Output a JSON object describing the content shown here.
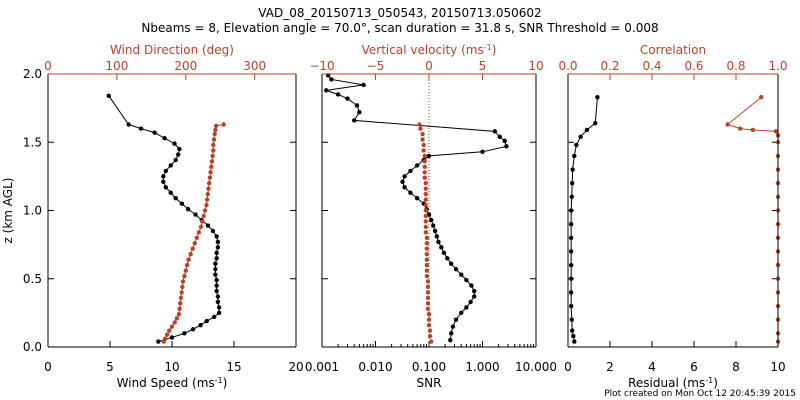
{
  "figure": {
    "title_line1": "VAD_08_20150713_050543, 20150713.050602",
    "title_line2": "Nbeams = 8, Elevation angle = 70.0°, scan duration = 31.8 s, SNR Threshold = 0.008",
    "footer": "Plot created on Mon Oct 12 20:45:39 2015",
    "colors": {
      "primary": "#000000",
      "secondary": "#b5442b"
    }
  },
  "chart_data": [
    {
      "type": "scatter",
      "panel": "wind",
      "ylabel": "z (km AGL)",
      "ylim": [
        0,
        2
      ],
      "yticks": [
        "0.0",
        "0.5",
        "1.0",
        "1.5",
        "2.0"
      ],
      "bottom_axis": {
        "label_main": "Wind Speed (ms",
        "label_sup": "-1",
        "label_end": ")",
        "range": [
          0,
          20
        ],
        "ticks": [
          "0",
          "5",
          "10",
          "15",
          "20"
        ]
      },
      "top_axis": {
        "label": "Wind Direction (deg)",
        "range": [
          0,
          360
        ],
        "ticks": [
          "0",
          "100",
          "200",
          "300"
        ]
      },
      "series": [
        {
          "axis": "bottom",
          "color": "#000000",
          "connected": true,
          "points": [
            [
              8.9,
              0.04
            ],
            [
              10.0,
              0.07
            ],
            [
              11.0,
              0.1
            ],
            [
              11.7,
              0.13
            ],
            [
              12.3,
              0.16
            ],
            [
              12.8,
              0.19
            ],
            [
              13.4,
              0.22
            ],
            [
              13.8,
              0.25
            ],
            [
              13.8,
              0.29
            ],
            [
              13.7,
              0.33
            ],
            [
              13.7,
              0.37
            ],
            [
              13.6,
              0.41
            ],
            [
              13.6,
              0.45
            ],
            [
              13.6,
              0.49
            ],
            [
              13.5,
              0.53
            ],
            [
              13.5,
              0.57
            ],
            [
              13.5,
              0.61
            ],
            [
              13.6,
              0.65
            ],
            [
              13.6,
              0.69
            ],
            [
              13.7,
              0.73
            ],
            [
              13.7,
              0.77
            ],
            [
              13.6,
              0.81
            ],
            [
              13.3,
              0.85
            ],
            [
              12.9,
              0.89
            ],
            [
              12.4,
              0.93
            ],
            [
              11.9,
              0.97
            ],
            [
              11.3,
              1.01
            ],
            [
              10.8,
              1.05
            ],
            [
              10.3,
              1.09
            ],
            [
              9.9,
              1.13
            ],
            [
              9.5,
              1.17
            ],
            [
              9.3,
              1.21
            ],
            [
              9.3,
              1.25
            ],
            [
              9.5,
              1.29
            ],
            [
              9.9,
              1.33
            ],
            [
              10.3,
              1.37
            ],
            [
              10.5,
              1.41
            ],
            [
              10.6,
              1.45
            ],
            [
              10.2,
              1.49
            ],
            [
              9.4,
              1.53
            ],
            [
              8.6,
              1.57
            ],
            [
              7.5,
              1.6
            ],
            [
              6.5,
              1.63
            ],
            [
              4.9,
              1.84
            ]
          ]
        },
        {
          "axis": "top",
          "color": "#b5442b",
          "connected": true,
          "points": [
            [
              168,
              0.04
            ],
            [
              170,
              0.06
            ],
            [
              173,
              0.09
            ],
            [
              176,
              0.12
            ],
            [
              180,
              0.15
            ],
            [
              184,
              0.18
            ],
            [
              187,
              0.21
            ],
            [
              190,
              0.24
            ],
            [
              191,
              0.28
            ],
            [
              192,
              0.32
            ],
            [
              193,
              0.36
            ],
            [
              194,
              0.4
            ],
            [
              195,
              0.44
            ],
            [
              196,
              0.48
            ],
            [
              198,
              0.52
            ],
            [
              200,
              0.56
            ],
            [
              202,
              0.6
            ],
            [
              204,
              0.64
            ],
            [
              207,
              0.68
            ],
            [
              210,
              0.72
            ],
            [
              213,
              0.76
            ],
            [
              216,
              0.8
            ],
            [
              219,
              0.84
            ],
            [
              222,
              0.88
            ],
            [
              224,
              0.92
            ],
            [
              226,
              0.96
            ],
            [
              228,
              1.0
            ],
            [
              230,
              1.04
            ],
            [
              231,
              1.08
            ],
            [
              232,
              1.12
            ],
            [
              233,
              1.16
            ],
            [
              234,
              1.2
            ],
            [
              235,
              1.24
            ],
            [
              236,
              1.28
            ],
            [
              237,
              1.32
            ],
            [
              238,
              1.36
            ],
            [
              239,
              1.4
            ],
            [
              240,
              1.44
            ],
            [
              240,
              1.48
            ],
            [
              241,
              1.52
            ],
            [
              242,
              1.56
            ],
            [
              243,
              1.59
            ],
            [
              244,
              1.62
            ],
            [
              255,
              1.63
            ]
          ]
        }
      ]
    },
    {
      "type": "scatter",
      "panel": "vertical",
      "ylim": [
        0,
        2
      ],
      "bottom_axis": {
        "label": "SNR",
        "scale": "log",
        "range": [
          0.001,
          10
        ],
        "ticks": [
          "0.001",
          "0.010",
          "0.100",
          "1.000",
          "10.000"
        ]
      },
      "top_axis": {
        "label_main": "Vertical velocity (ms",
        "label_sup": "-1",
        "label_end": ")",
        "range": [
          -10,
          10
        ],
        "ticks": [
          "−10",
          "−5",
          "0",
          "5",
          "10"
        ],
        "zero_line": 0
      },
      "series": [
        {
          "axis": "bottom",
          "color": "#000000",
          "connected": true,
          "points": [
            [
              0.25,
              0.05
            ],
            [
              0.26,
              0.1
            ],
            [
              0.28,
              0.15
            ],
            [
              0.32,
              0.2
            ],
            [
              0.4,
              0.25
            ],
            [
              0.5,
              0.29
            ],
            [
              0.6,
              0.33
            ],
            [
              0.7,
              0.37
            ],
            [
              0.7,
              0.41
            ],
            [
              0.62,
              0.45
            ],
            [
              0.5,
              0.49
            ],
            [
              0.4,
              0.53
            ],
            [
              0.32,
              0.57
            ],
            [
              0.26,
              0.61
            ],
            [
              0.22,
              0.65
            ],
            [
              0.19,
              0.69
            ],
            [
              0.17,
              0.73
            ],
            [
              0.15,
              0.77
            ],
            [
              0.14,
              0.81
            ],
            [
              0.13,
              0.85
            ],
            [
              0.12,
              0.89
            ],
            [
              0.11,
              0.93
            ],
            [
              0.1,
              0.97
            ],
            [
              0.09,
              1.01
            ],
            [
              0.08,
              1.05
            ],
            [
              0.06,
              1.09
            ],
            [
              0.045,
              1.13
            ],
            [
              0.035,
              1.17
            ],
            [
              0.032,
              1.21
            ],
            [
              0.035,
              1.25
            ],
            [
              0.045,
              1.29
            ],
            [
              0.06,
              1.33
            ],
            [
              0.08,
              1.37
            ],
            [
              0.1,
              1.4
            ],
            [
              1.0,
              1.43
            ],
            [
              2.8,
              1.47
            ],
            [
              2.6,
              1.51
            ],
            [
              2.1,
              1.54
            ],
            [
              1.7,
              1.58
            ],
            [
              0.004,
              1.66
            ],
            [
              0.005,
              1.72
            ],
            [
              0.0045,
              1.77
            ],
            [
              0.003,
              1.82
            ],
            [
              0.002,
              1.85
            ],
            [
              0.0012,
              1.88
            ],
            [
              0.006,
              1.92
            ],
            [
              0.0015,
              1.96
            ],
            [
              0.0013,
              1.99
            ]
          ]
        },
        {
          "axis": "top",
          "color": "#b5442b",
          "connected": false,
          "points": [
            [
              0.2,
              0.04
            ],
            [
              0.1,
              0.08
            ],
            [
              0.1,
              0.12
            ],
            [
              0.0,
              0.16
            ],
            [
              0.0,
              0.2
            ],
            [
              0.0,
              0.24
            ],
            [
              -0.1,
              0.28
            ],
            [
              -0.1,
              0.32
            ],
            [
              -0.1,
              0.36
            ],
            [
              -0.1,
              0.4
            ],
            [
              -0.1,
              0.44
            ],
            [
              -0.1,
              0.48
            ],
            [
              -0.2,
              0.52
            ],
            [
              -0.2,
              0.56
            ],
            [
              -0.2,
              0.6
            ],
            [
              -0.2,
              0.64
            ],
            [
              -0.2,
              0.68
            ],
            [
              -0.2,
              0.72
            ],
            [
              -0.2,
              0.76
            ],
            [
              -0.2,
              0.8
            ],
            [
              -0.3,
              0.84
            ],
            [
              -0.3,
              0.88
            ],
            [
              -0.3,
              0.92
            ],
            [
              -0.3,
              0.96
            ],
            [
              -0.3,
              1.0
            ],
            [
              -0.3,
              1.04
            ],
            [
              -0.3,
              1.08
            ],
            [
              -0.3,
              1.12
            ],
            [
              -0.3,
              1.16
            ],
            [
              -0.3,
              1.2
            ],
            [
              -0.4,
              1.24
            ],
            [
              -0.4,
              1.28
            ],
            [
              -0.4,
              1.32
            ],
            [
              -0.4,
              1.36
            ],
            [
              -0.4,
              1.4
            ],
            [
              -0.5,
              1.44
            ],
            [
              -0.5,
              1.48
            ],
            [
              -0.6,
              1.52
            ],
            [
              -0.6,
              1.56
            ],
            [
              -0.8,
              1.6
            ],
            [
              -0.9,
              1.63
            ]
          ]
        }
      ]
    },
    {
      "type": "scatter",
      "panel": "correlation",
      "ylim": [
        0,
        2
      ],
      "bottom_axis": {
        "label_main": "Residual (ms",
        "label_sup": "-1",
        "label_end": ")",
        "range": [
          0,
          10
        ],
        "ticks": [
          "0",
          "2",
          "4",
          "6",
          "8",
          "10"
        ]
      },
      "top_axis": {
        "label": "Correlation",
        "range": [
          0,
          1
        ],
        "ticks": [
          "0.0",
          "0.2",
          "0.4",
          "0.6",
          "0.8",
          "1.0"
        ]
      },
      "series": [
        {
          "axis": "bottom",
          "color": "#000000",
          "connected": true,
          "points": [
            [
              0.3,
              0.04
            ],
            [
              0.25,
              0.08
            ],
            [
              0.2,
              0.12
            ],
            [
              0.18,
              0.2
            ],
            [
              0.15,
              0.3
            ],
            [
              0.15,
              0.4
            ],
            [
              0.15,
              0.5
            ],
            [
              0.15,
              0.6
            ],
            [
              0.15,
              0.7
            ],
            [
              0.15,
              0.8
            ],
            [
              0.15,
              0.9
            ],
            [
              0.15,
              1.0
            ],
            [
              0.18,
              1.1
            ],
            [
              0.2,
              1.2
            ],
            [
              0.22,
              1.3
            ],
            [
              0.3,
              1.4
            ],
            [
              0.4,
              1.48
            ],
            [
              0.6,
              1.54
            ],
            [
              0.9,
              1.59
            ],
            [
              1.3,
              1.64
            ],
            [
              1.4,
              1.83
            ]
          ]
        },
        {
          "axis": "top",
          "color": "#b5442b",
          "connected": true,
          "points": [
            [
              1.0,
              0.04
            ],
            [
              1.0,
              0.1
            ],
            [
              1.0,
              0.2
            ],
            [
              1.0,
              0.3
            ],
            [
              1.0,
              0.4
            ],
            [
              1.0,
              0.5
            ],
            [
              1.0,
              0.6
            ],
            [
              1.0,
              0.7
            ],
            [
              1.0,
              0.8
            ],
            [
              1.0,
              0.9
            ],
            [
              1.0,
              1.0
            ],
            [
              1.0,
              1.1
            ],
            [
              1.0,
              1.2
            ],
            [
              1.0,
              1.3
            ],
            [
              1.0,
              1.4
            ],
            [
              1.0,
              1.5
            ],
            [
              1.0,
              1.55
            ],
            [
              0.99,
              1.58
            ],
            [
              0.88,
              1.59
            ],
            [
              0.82,
              1.6
            ],
            [
              0.76,
              1.63
            ],
            [
              0.92,
              1.83
            ]
          ]
        }
      ]
    }
  ]
}
